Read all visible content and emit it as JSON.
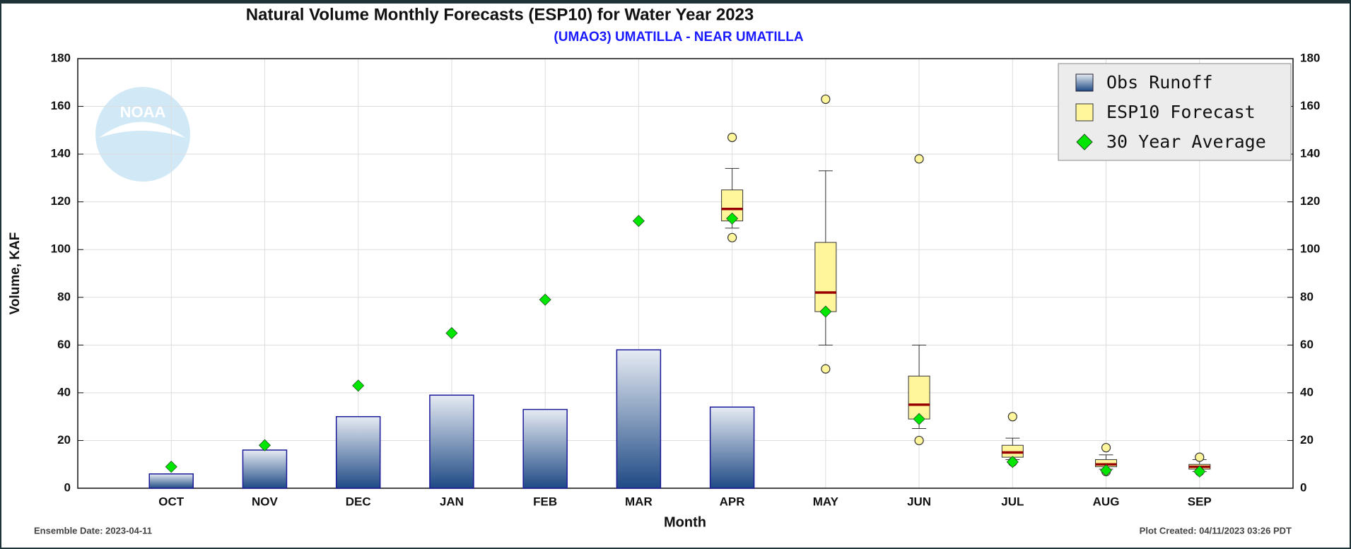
{
  "chart_data": {
    "type": "bar-box",
    "title": "Natural Volume Monthly Forecasts (ESP10) for Water Year 2023",
    "subtitle": "(UMAO3) UMATILLA - NEAR UMATILLA",
    "y_label": "Volume, KAF",
    "x_label": "Month",
    "logo_text": "NOAA",
    "footer_left": "Ensemble Date: 2023-04-11",
    "footer_right": "Plot Created: 04/11/2023 03:26 PDT",
    "categories": [
      "OCT",
      "NOV",
      "DEC",
      "JAN",
      "FEB",
      "MAR",
      "APR",
      "MAY",
      "JUN",
      "JUL",
      "AUG",
      "SEP"
    ],
    "ylim": [
      0,
      180
    ],
    "yticks": [
      0,
      20,
      40,
      60,
      80,
      100,
      120,
      140,
      160,
      180
    ],
    "grid": true,
    "legend_position": "top-right",
    "observed": {
      "name": "Obs Runoff",
      "color": "#1f4a85",
      "values": [
        6,
        16,
        30,
        39,
        33,
        58,
        34,
        null,
        null,
        null,
        null,
        null
      ]
    },
    "forecast": {
      "name": "ESP10 Forecast",
      "color": "#fff59b",
      "median_color": "#990000",
      "min": [
        null,
        null,
        null,
        null,
        null,
        null,
        105,
        50,
        20,
        11,
        7,
        7
      ],
      "whisker_low": [
        null,
        null,
        null,
        null,
        null,
        null,
        109,
        60,
        25,
        12,
        8,
        7
      ],
      "q1": [
        null,
        null,
        null,
        null,
        null,
        null,
        112,
        74,
        29,
        13,
        9,
        8
      ],
      "median": [
        null,
        null,
        null,
        null,
        null,
        null,
        117,
        82,
        35,
        15,
        10,
        9
      ],
      "q3": [
        null,
        null,
        null,
        null,
        null,
        null,
        125,
        103,
        47,
        18,
        12,
        10
      ],
      "whisker_high": [
        null,
        null,
        null,
        null,
        null,
        null,
        134,
        133,
        60,
        21,
        14,
        12
      ],
      "max": [
        null,
        null,
        null,
        null,
        null,
        null,
        147,
        163,
        138,
        30,
        17,
        13
      ]
    },
    "average": {
      "name": "30 Year Average",
      "color": "#00e600",
      "values": [
        9,
        18,
        43,
        65,
        79,
        112,
        113,
        74,
        29,
        11,
        7.5,
        7
      ]
    }
  }
}
